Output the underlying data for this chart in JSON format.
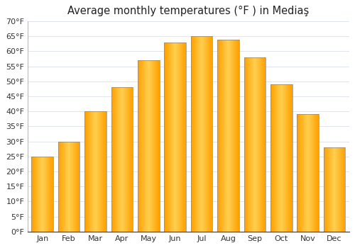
{
  "title": "Average monthly temperatures (°F ) in Mediaş",
  "months": [
    "Jan",
    "Feb",
    "Mar",
    "Apr",
    "May",
    "Jun",
    "Jul",
    "Aug",
    "Sep",
    "Oct",
    "Nov",
    "Dec"
  ],
  "values": [
    25,
    30,
    40,
    48,
    57,
    63,
    65,
    64,
    58,
    49,
    39,
    28
  ],
  "bar_color": "#FFAA00",
  "bar_edge_color": "#888888",
  "ylim": [
    0,
    70
  ],
  "yticks": [
    0,
    5,
    10,
    15,
    20,
    25,
    30,
    35,
    40,
    45,
    50,
    55,
    60,
    65,
    70
  ],
  "ytick_labels": [
    "0°F",
    "5°F",
    "10°F",
    "15°F",
    "20°F",
    "25°F",
    "30°F",
    "35°F",
    "40°F",
    "45°F",
    "50°F",
    "55°F",
    "60°F",
    "65°F",
    "70°F"
  ],
  "background_color": "#ffffff",
  "grid_color": "#e0e4ee",
  "title_fontsize": 10.5,
  "tick_fontsize": 8,
  "bar_width": 0.82,
  "figsize": [
    5.0,
    3.5
  ],
  "dpi": 100
}
